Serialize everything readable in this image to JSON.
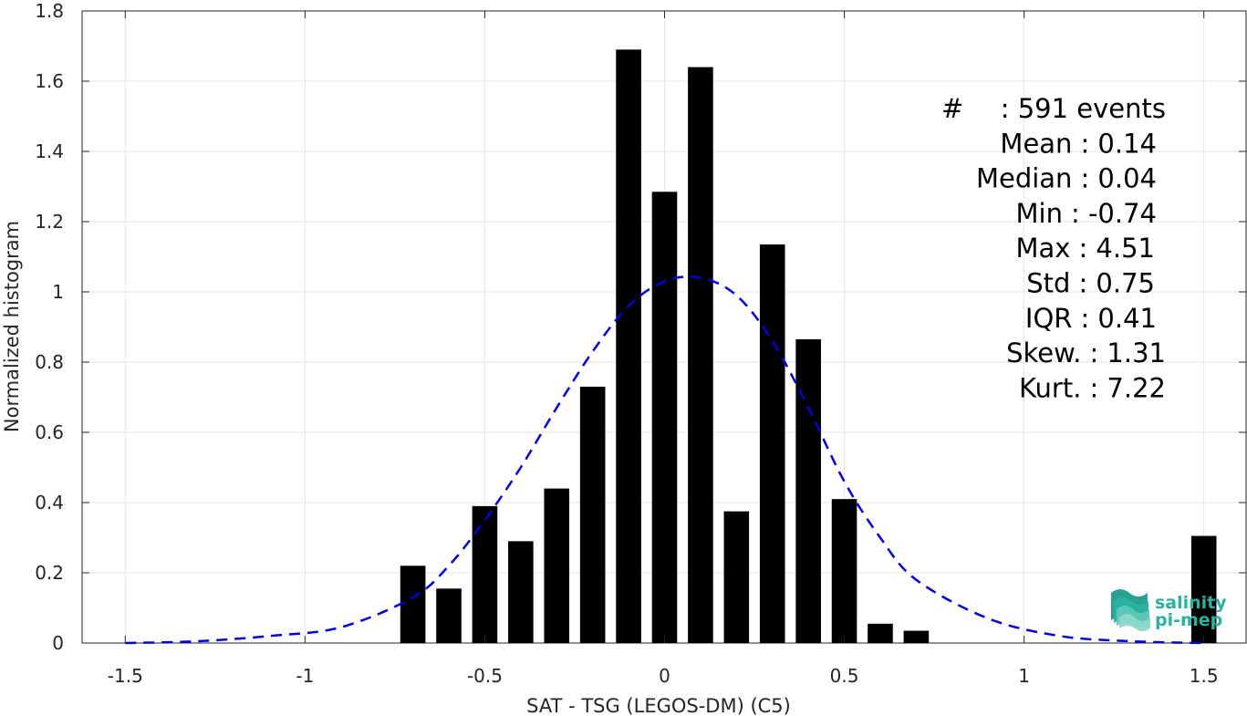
{
  "chart_data": {
    "type": "bar",
    "xlabel": "SAT - TSG (LEGOS-DM) (C5)",
    "ylabel": "Normalized histogram",
    "xlim": [
      -1.62,
      1.62
    ],
    "ylim": [
      0,
      1.8
    ],
    "xticks": [
      -1.5,
      -1,
      -0.5,
      0,
      0.5,
      1,
      1.5
    ],
    "xtick_labels": [
      "-1.5",
      "-1",
      "-0.5",
      "0",
      "0.5",
      "1",
      "1.5"
    ],
    "yticks": [
      0,
      0.2,
      0.4,
      0.6,
      0.8,
      1,
      1.2,
      1.4,
      1.6,
      1.8
    ],
    "ytick_labels": [
      "0",
      "0.2",
      "0.4",
      "0.6",
      "0.8",
      "1",
      "1.2",
      "1.4",
      "1.6",
      "1.8"
    ],
    "grid": true,
    "bar_width": 0.07,
    "bars": {
      "x": [
        -0.7,
        -0.6,
        -0.5,
        -0.4,
        -0.3,
        -0.2,
        -0.1,
        0.0,
        0.1,
        0.2,
        0.3,
        0.4,
        0.5,
        0.6,
        0.7,
        1.5
      ],
      "values": [
        0.22,
        0.155,
        0.39,
        0.29,
        0.44,
        0.73,
        1.69,
        1.285,
        1.64,
        0.375,
        1.135,
        0.865,
        0.41,
        0.055,
        0.035,
        0.305
      ],
      "color": "#000000"
    },
    "fit_curve": {
      "style": "dashed",
      "color": "#0000e0",
      "x": [
        -1.5,
        -1.3,
        -1.1,
        -0.9,
        -0.7,
        -0.6,
        -0.5,
        -0.4,
        -0.3,
        -0.2,
        -0.1,
        0.0,
        0.1,
        0.2,
        0.3,
        0.4,
        0.5,
        0.6,
        0.7,
        0.9,
        1.1,
        1.3,
        1.5
      ],
      "y": [
        0.0,
        0.005,
        0.02,
        0.045,
        0.13,
        0.22,
        0.35,
        0.5,
        0.67,
        0.83,
        0.96,
        1.03,
        1.04,
        0.99,
        0.86,
        0.67,
        0.46,
        0.3,
        0.18,
        0.07,
        0.02,
        0.005,
        0.0
      ]
    },
    "annotations": [
      {
        "label": "#",
        "value": ": 591 events"
      },
      {
        "label": "Mean",
        "value": ": 0.14"
      },
      {
        "label": "Median",
        "value": ": 0.04"
      },
      {
        "label": "Min",
        "value": ": -0.74"
      },
      {
        "label": "Max",
        "value": ": 4.51"
      },
      {
        "label": "Std",
        "value": ": 0.75"
      },
      {
        "label": "IQR",
        "value": ": 0.41"
      },
      {
        "label": "Skew.",
        "value": ": 1.31"
      },
      {
        "label": "Kurt.",
        "value": ": 7.22"
      }
    ]
  },
  "logo": {
    "line1": "salinity",
    "line2": "pi-mep",
    "color": "#2ab3a0"
  }
}
